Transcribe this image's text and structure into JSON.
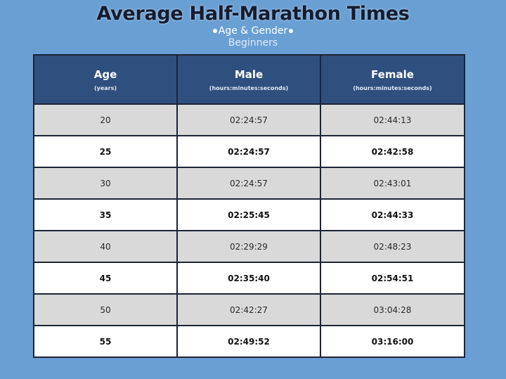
{
  "title": "Average Half-Marathon Times",
  "subtitle": "Age & Gender",
  "level": "Beginners",
  "table": {
    "headers": [
      {
        "main": "Age",
        "sub": "(years)"
      },
      {
        "main": "Male",
        "sub": "(hours:minutes:seconds)"
      },
      {
        "main": "Female",
        "sub": "(hours:minutes:seconds)"
      }
    ],
    "rows": [
      {
        "age": "20",
        "male": "02:24:57",
        "female": "02:44:13"
      },
      {
        "age": "25",
        "male": "02:24:57",
        "female": "02:42:58"
      },
      {
        "age": "30",
        "male": "02:24:57",
        "female": "02:43:01"
      },
      {
        "age": "35",
        "male": "02:25:45",
        "female": "02:44:33"
      },
      {
        "age": "40",
        "male": "02:29:29",
        "female": "02:48:23"
      },
      {
        "age": "45",
        "male": "02:35:40",
        "female": "02:54:51"
      },
      {
        "age": "50",
        "male": "02:42:27",
        "female": "03:04:28"
      },
      {
        "age": "55",
        "male": "02:49:52",
        "female": "03:16:00"
      }
    ]
  },
  "colors": {
    "background": "#6a9fd4",
    "header_fill": "#2f4f7f",
    "row_shaded": "#d9d9d9",
    "row_plain": "#ffffff",
    "border": "#1c2436"
  }
}
